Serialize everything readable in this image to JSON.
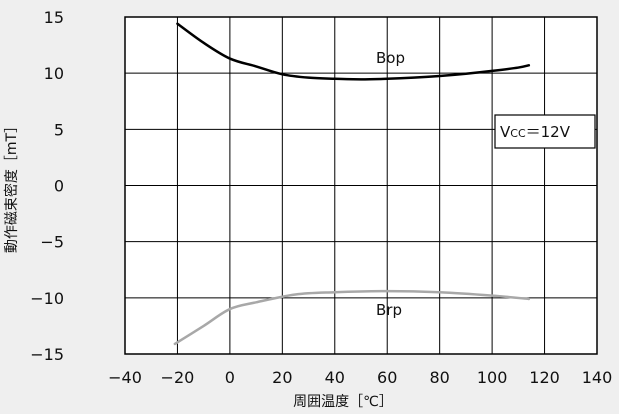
{
  "chart_data": {
    "type": "line",
    "xlabel": "周囲温度［℃］",
    "ylabel": "動作磁束密度［mT］",
    "xlim": [
      -40,
      140
    ],
    "ylim": [
      -15,
      15
    ],
    "x_ticks": [
      "−40",
      "−20",
      "0",
      "20",
      "40",
      "60",
      "80",
      "100",
      "120",
      "140"
    ],
    "y_ticks": [
      "15",
      "10",
      "5",
      "0",
      "−5",
      "−10",
      "−15"
    ],
    "x_tick_values": [
      -40,
      -20,
      0,
      20,
      40,
      60,
      80,
      100,
      120,
      140
    ],
    "y_tick_values": [
      15,
      10,
      5,
      0,
      -5,
      -10,
      -15
    ],
    "grid": true,
    "annotation": {
      "label_main": "V",
      "label_sub": "CC",
      "label_rest": "＝12V"
    },
    "series": [
      {
        "name": "Bop",
        "color": "#000000",
        "x": [
          -20,
          -10,
          0,
          10,
          20,
          30,
          40,
          50,
          60,
          70,
          80,
          90,
          100,
          110,
          114
        ],
        "y": [
          14.4,
          12.7,
          11.3,
          10.6,
          9.9,
          9.6,
          9.5,
          9.45,
          9.5,
          9.6,
          9.75,
          9.95,
          10.2,
          10.5,
          10.7
        ]
      },
      {
        "name": "Brp",
        "color": "#a8a8a8",
        "x": [
          -21,
          -10,
          0,
          10,
          25,
          40,
          60,
          80,
          100,
          114
        ],
        "y": [
          -14.1,
          -12.5,
          -11.0,
          -10.4,
          -9.7,
          -9.5,
          -9.4,
          -9.5,
          -9.8,
          -10.1
        ]
      }
    ]
  }
}
